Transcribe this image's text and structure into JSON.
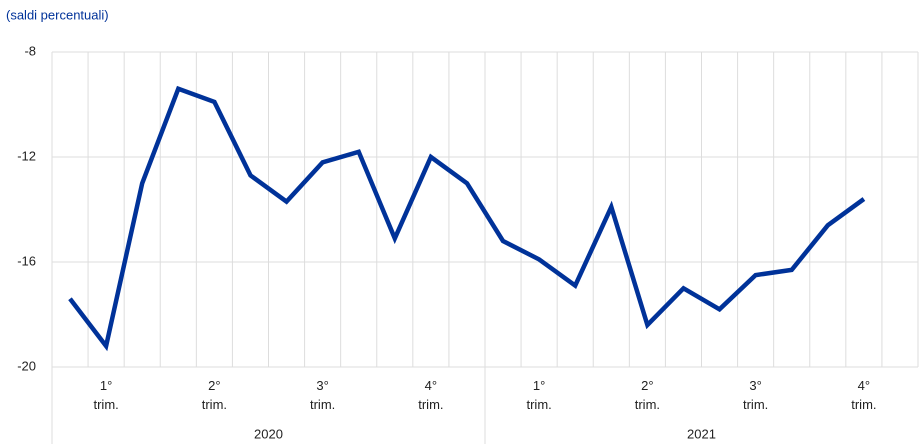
{
  "chart_data": {
    "type": "line",
    "subtitle": "(saldi percentuali)",
    "categories": [
      null,
      "1°\ntrim.",
      null,
      null,
      "2°\ntrim.",
      null,
      null,
      "3°\ntrim.",
      null,
      null,
      "4°\ntrim.",
      null,
      null,
      "1°\ntrim.",
      null,
      null,
      "2°\ntrim.",
      null,
      null,
      "3°\ntrim.",
      null,
      null,
      "4°\ntrim.",
      null
    ],
    "groups": [
      "2020",
      "2021"
    ],
    "values": [
      -17.4,
      -19.2,
      -13,
      -9.4,
      -9.9,
      -12.7,
      -13.7,
      -12.2,
      -11.8,
      -15.1,
      -12,
      -13,
      -15.2,
      -15.9,
      -16.9,
      -13.9,
      -18.4,
      -17,
      -17.8,
      -16.5,
      -16.3,
      -14.6,
      -13.6,
      null
    ],
    "color": "#003299",
    "ylim": [
      -20,
      -8
    ],
    "yticks": [
      -20,
      -16,
      -12,
      -8
    ],
    "grid": true
  }
}
